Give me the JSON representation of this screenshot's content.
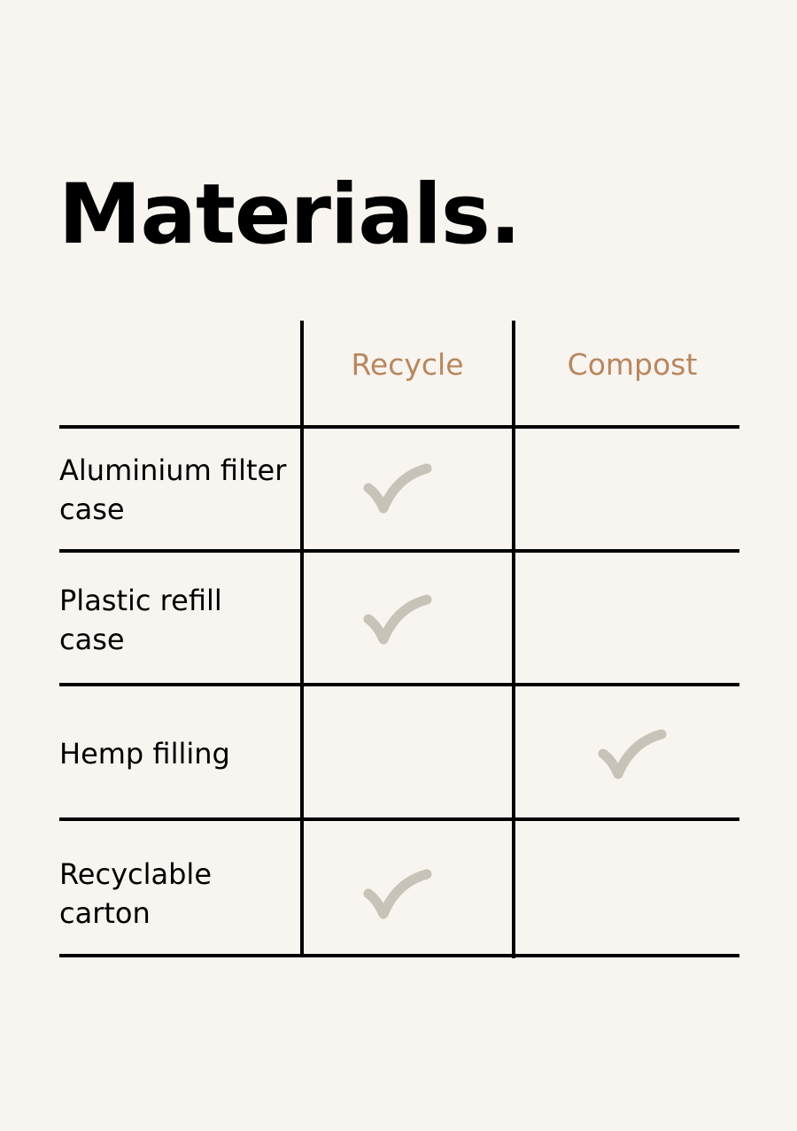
{
  "title": "Materials.",
  "columns": [
    "Recycle",
    "Compost"
  ],
  "rows": [
    {
      "label": "Aluminium filter case",
      "recycle": true,
      "compost": false
    },
    {
      "label": "Plastic refill case",
      "recycle": true,
      "compost": false
    },
    {
      "label": "Hemp filling",
      "recycle": false,
      "compost": true
    },
    {
      "label": "Recyclable carton",
      "recycle": true,
      "compost": false
    }
  ],
  "colors": {
    "background": "#f8f4ef",
    "header": "#b8875f",
    "check": "#c8c3b8",
    "lines": "#000000"
  },
  "icons": {
    "mark": "checkmark-icon"
  }
}
